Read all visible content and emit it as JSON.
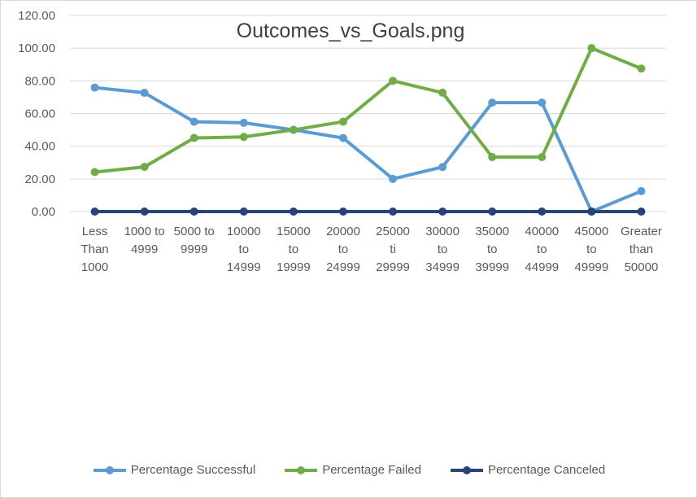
{
  "chart_data": {
    "type": "line",
    "title": "Outcomes_vs_Goals.png",
    "xlabel": "",
    "ylabel": "",
    "ylim": [
      0,
      120
    ],
    "y_ticks": [
      "0.00",
      "20.00",
      "40.00",
      "60.00",
      "80.00",
      "100.00",
      "120.00"
    ],
    "categories": [
      [
        "Less",
        "Than",
        "1000"
      ],
      [
        "1000 to",
        "4999"
      ],
      [
        "5000 to",
        "9999"
      ],
      [
        "10000",
        "to",
        "14999"
      ],
      [
        "15000",
        "to",
        "19999"
      ],
      [
        "20000",
        "to",
        "24999"
      ],
      [
        "25000",
        "ti",
        "29999"
      ],
      [
        "30000",
        "to",
        "34999"
      ],
      [
        "35000",
        "to",
        "39999"
      ],
      [
        "40000",
        "to",
        "44999"
      ],
      [
        "45000",
        "to",
        "49999"
      ],
      [
        "Greater",
        "than",
        "50000"
      ]
    ],
    "grid": true,
    "legend_position": "bottom",
    "series": [
      {
        "name": "Percentage Successful",
        "color": "#5B9BD5",
        "values": [
          75.86,
          72.67,
          54.96,
          54.33,
          50.0,
          45.0,
          20.0,
          27.27,
          66.67,
          66.67,
          0,
          12.5
        ]
      },
      {
        "name": "Percentage Failed",
        "color": "#70AD47",
        "values": [
          24.14,
          27.33,
          45.04,
          45.67,
          50.0,
          55.0,
          80.0,
          72.73,
          33.33,
          33.33,
          100,
          87.5
        ]
      },
      {
        "name": "Percentage Canceled",
        "color": "#264478",
        "values": [
          0,
          0,
          0,
          0,
          0,
          0,
          0,
          0,
          0,
          0,
          0,
          0
        ]
      }
    ]
  }
}
